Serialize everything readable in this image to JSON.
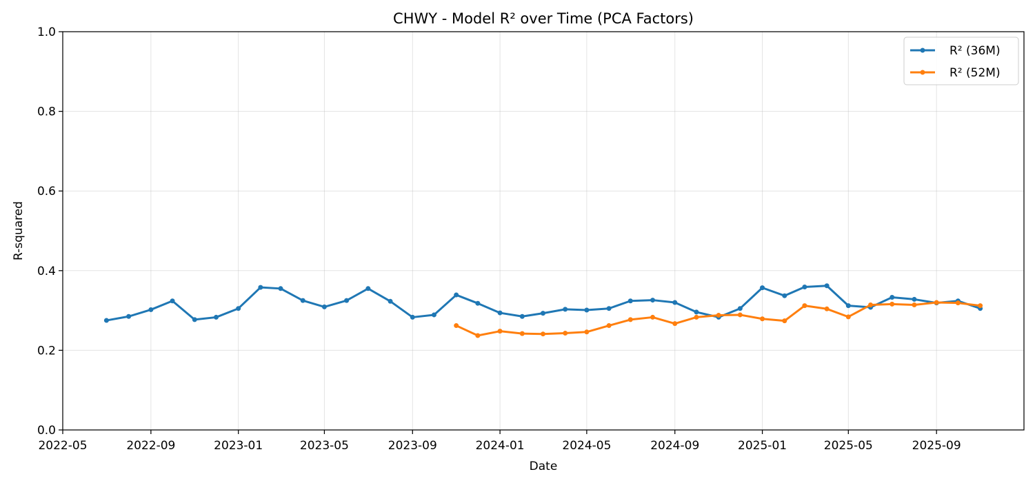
{
  "chart_data": {
    "type": "line",
    "title": "CHWY - Model R² over Time (PCA Factors)",
    "xlabel": "Date",
    "ylabel": "R-squared",
    "xlim": [
      "2022-05-01",
      "2026-01-01"
    ],
    "ylim": [
      0,
      1
    ],
    "x_ticks": [
      "2022-05",
      "2022-09",
      "2023-01",
      "2023-05",
      "2023-09",
      "2024-01",
      "2024-05",
      "2024-09",
      "2025-01",
      "2025-05",
      "2025-09"
    ],
    "y_ticks": [
      "0.0",
      "0.2",
      "0.4",
      "0.6",
      "0.8",
      "1.0"
    ],
    "grid": true,
    "legend_position": "top-right",
    "colors": {
      "series_36m": "#1f77b4",
      "series_52m": "#ff7f0e"
    },
    "series": [
      {
        "name": "R² (36M)",
        "color": "#1f77b4",
        "points": [
          [
            "2022-07-01",
            0.275
          ],
          [
            "2022-08-01",
            0.285
          ],
          [
            "2022-09-01",
            0.302
          ],
          [
            "2022-10-01",
            0.324
          ],
          [
            "2022-11-01",
            0.277
          ],
          [
            "2022-12-01",
            0.283
          ],
          [
            "2023-01-01",
            0.305
          ],
          [
            "2023-02-01",
            0.358
          ],
          [
            "2023-03-01",
            0.355
          ],
          [
            "2023-04-01",
            0.325
          ],
          [
            "2023-05-01",
            0.309
          ],
          [
            "2023-06-01",
            0.325
          ],
          [
            "2023-07-01",
            0.355
          ],
          [
            "2023-08-01",
            0.323
          ],
          [
            "2023-09-01",
            0.283
          ],
          [
            "2023-10-01",
            0.289
          ],
          [
            "2023-11-01",
            0.339
          ],
          [
            "2023-12-01",
            0.318
          ],
          [
            "2024-01-01",
            0.294
          ],
          [
            "2024-02-01",
            0.285
          ],
          [
            "2024-03-01",
            0.293
          ],
          [
            "2024-04-01",
            0.303
          ],
          [
            "2024-05-01",
            0.301
          ],
          [
            "2024-06-01",
            0.305
          ],
          [
            "2024-07-01",
            0.324
          ],
          [
            "2024-08-01",
            0.326
          ],
          [
            "2024-09-01",
            0.32
          ],
          [
            "2024-10-01",
            0.296
          ],
          [
            "2024-11-01",
            0.283
          ],
          [
            "2024-12-01",
            0.305
          ],
          [
            "2025-01-01",
            0.357
          ],
          [
            "2025-02-01",
            0.337
          ],
          [
            "2025-03-01",
            0.359
          ],
          [
            "2025-04-01",
            0.362
          ],
          [
            "2025-05-01",
            0.312
          ],
          [
            "2025-06-01",
            0.308
          ],
          [
            "2025-07-01",
            0.333
          ],
          [
            "2025-08-01",
            0.328
          ],
          [
            "2025-09-01",
            0.319
          ],
          [
            "2025-10-01",
            0.324
          ],
          [
            "2025-11-01",
            0.305
          ]
        ]
      },
      {
        "name": "R² (52M)",
        "color": "#ff7f0e",
        "points": [
          [
            "2023-11-01",
            0.262
          ],
          [
            "2023-12-01",
            0.237
          ],
          [
            "2024-01-01",
            0.248
          ],
          [
            "2024-02-01",
            0.242
          ],
          [
            "2024-03-01",
            0.241
          ],
          [
            "2024-04-01",
            0.243
          ],
          [
            "2024-05-01",
            0.246
          ],
          [
            "2024-06-01",
            0.262
          ],
          [
            "2024-07-01",
            0.277
          ],
          [
            "2024-08-01",
            0.283
          ],
          [
            "2024-09-01",
            0.267
          ],
          [
            "2024-10-01",
            0.283
          ],
          [
            "2024-11-01",
            0.288
          ],
          [
            "2024-12-01",
            0.289
          ],
          [
            "2025-01-01",
            0.279
          ],
          [
            "2025-02-01",
            0.274
          ],
          [
            "2025-03-01",
            0.312
          ],
          [
            "2025-04-01",
            0.304
          ],
          [
            "2025-05-01",
            0.284
          ],
          [
            "2025-06-01",
            0.314
          ],
          [
            "2025-07-01",
            0.316
          ],
          [
            "2025-08-01",
            0.314
          ],
          [
            "2025-09-01",
            0.32
          ],
          [
            "2025-10-01",
            0.319
          ],
          [
            "2025-11-01",
            0.312
          ]
        ]
      }
    ]
  }
}
